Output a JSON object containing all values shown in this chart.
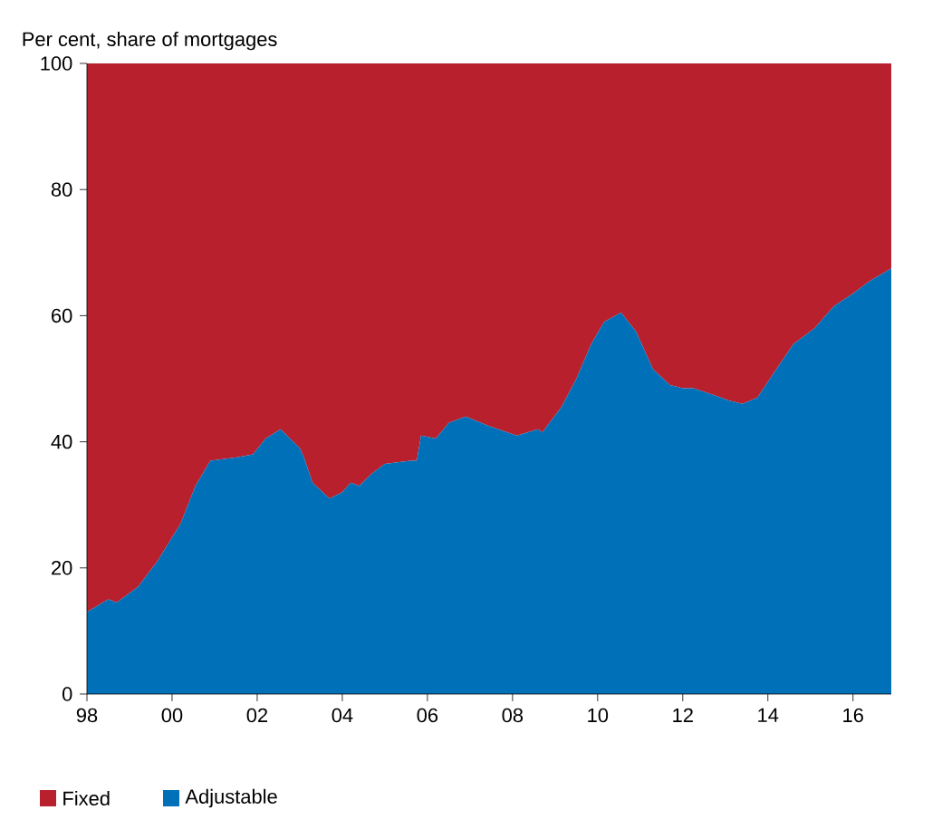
{
  "chart_data": {
    "type": "area",
    "ylabel": "Per cent, share of mortgages",
    "stacked": true,
    "x": [
      1998.0,
      1998.5,
      1998.7,
      1999.2,
      1999.65,
      2000.2,
      2000.55,
      2000.9,
      2001.5,
      2001.9,
      2002.2,
      2002.55,
      2003.0,
      2003.1,
      2003.3,
      2003.7,
      2004.0,
      2004.2,
      2004.4,
      2004.7,
      2005.0,
      2005.6,
      2005.75,
      2005.85,
      2006.2,
      2006.5,
      2006.9,
      2007.45,
      2008.1,
      2008.6,
      2008.7,
      2009.15,
      2009.5,
      2009.85,
      2010.15,
      2010.55,
      2010.9,
      2011.3,
      2011.7,
      2012.0,
      2012.25,
      2012.7,
      2013.1,
      2013.4,
      2013.75,
      2014.1,
      2014.6,
      2015.1,
      2015.55,
      2016.0,
      2016.4,
      2016.9
    ],
    "series": [
      {
        "name": "Adjustable",
        "color": "#0070b8",
        "values": [
          13,
          15,
          14.5,
          17,
          21,
          27,
          33,
          37,
          37.5,
          38,
          40.5,
          42,
          39,
          37.5,
          33.5,
          31,
          32,
          33.5,
          33,
          35,
          36.5,
          37,
          37,
          41,
          40.5,
          43,
          44,
          42.5,
          41,
          42,
          41.5,
          45.5,
          50,
          55.5,
          59,
          60.5,
          57.5,
          51.5,
          49,
          48.5,
          48.5,
          47.5,
          46.5,
          46,
          47,
          50.5,
          55.5,
          58,
          61.5,
          63.5,
          65.5,
          67.5
        ]
      },
      {
        "name": "Fixed",
        "color": "#b8202e",
        "values": [
          87,
          85,
          85.5,
          83,
          79,
          73,
          67,
          63,
          62.5,
          62,
          59.5,
          58,
          61,
          62.5,
          66.5,
          69,
          68,
          66.5,
          67,
          65,
          63.5,
          63,
          63,
          59,
          59.5,
          57,
          56,
          57.5,
          59,
          58,
          58.5,
          54.5,
          50,
          44.5,
          41,
          39.5,
          42.5,
          48.5,
          51,
          51.5,
          51.5,
          52.5,
          53.5,
          54,
          53,
          49.5,
          44.5,
          42,
          38.5,
          36.5,
          34.5,
          32.5
        ]
      }
    ],
    "xlim": [
      1998,
      2016.9
    ],
    "xticks": [
      {
        "value": 1998,
        "label": "98"
      },
      {
        "value": 2000,
        "label": "00"
      },
      {
        "value": 2002,
        "label": "02"
      },
      {
        "value": 2004,
        "label": "04"
      },
      {
        "value": 2006,
        "label": "06"
      },
      {
        "value": 2008,
        "label": "08"
      },
      {
        "value": 2010,
        "label": "10"
      },
      {
        "value": 2012,
        "label": "12"
      },
      {
        "value": 2014,
        "label": "14"
      },
      {
        "value": 2016,
        "label": "16"
      }
    ],
    "ylim": [
      0,
      100
    ],
    "yticks": [
      0,
      20,
      40,
      60,
      80,
      100
    ],
    "legend": "bottom left"
  }
}
